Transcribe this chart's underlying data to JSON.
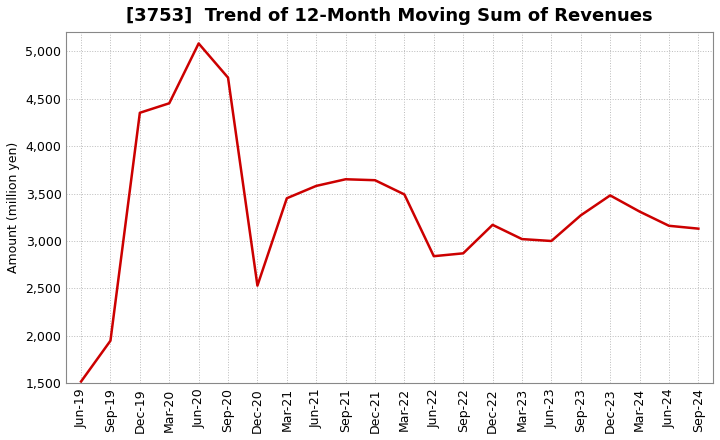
{
  "title": "[3753]  Trend of 12-Month Moving Sum of Revenues",
  "ylabel": "Amount (million yen)",
  "line_color": "#cc0000",
  "line_width": 1.8,
  "background_color": "#ffffff",
  "grid_color": "#bbbbbb",
  "ylim": [
    1500,
    5200
  ],
  "yticks": [
    1500,
    2000,
    2500,
    3000,
    3500,
    4000,
    4500,
    5000
  ],
  "x_labels": [
    "Jun-19",
    "Sep-19",
    "Dec-19",
    "Mar-20",
    "Jun-20",
    "Sep-20",
    "Dec-20",
    "Mar-21",
    "Jun-21",
    "Sep-21",
    "Dec-21",
    "Mar-22",
    "Jun-22",
    "Sep-22",
    "Dec-22",
    "Mar-23",
    "Jun-23",
    "Sep-23",
    "Dec-23",
    "Mar-24",
    "Jun-24",
    "Sep-24"
  ],
  "y_values": [
    1520,
    1950,
    4350,
    4450,
    5080,
    4720,
    2530,
    3450,
    3580,
    3650,
    3640,
    3490,
    2840,
    2870,
    3170,
    3020,
    3000,
    3270,
    3480,
    3310,
    3160,
    3130
  ],
  "title_fontsize": 13,
  "title_fontweight": "bold",
  "tick_fontsize": 9,
  "ylabel_fontsize": 9
}
